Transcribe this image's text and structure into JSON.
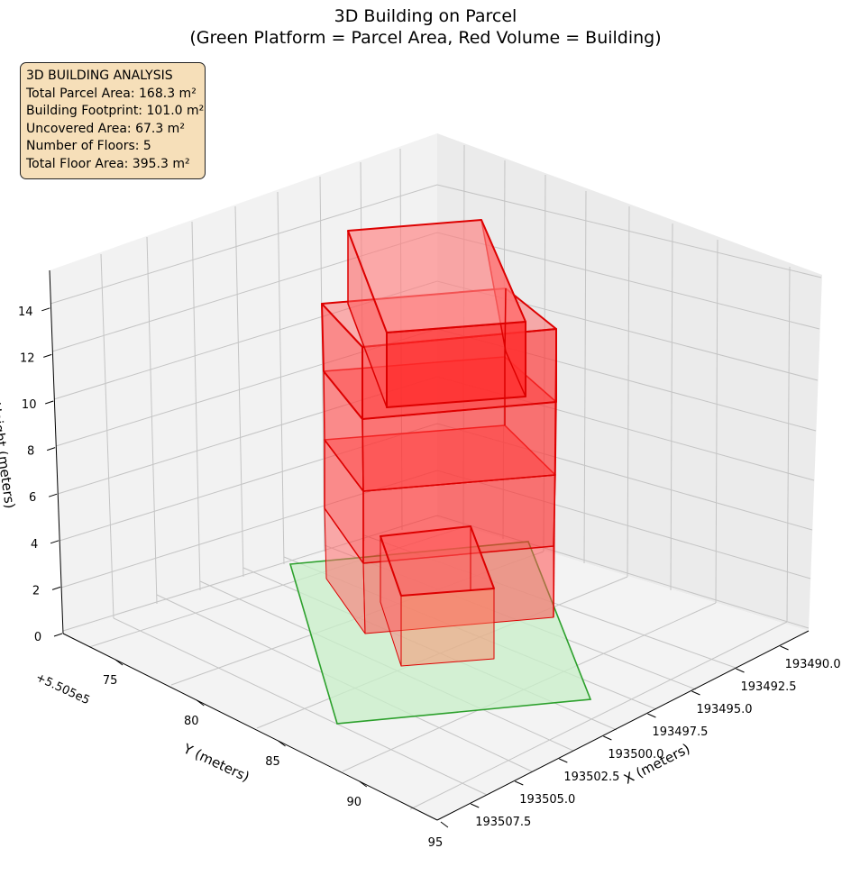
{
  "chart_data": {
    "type": "3d-box",
    "title": "3D Building on Parcel",
    "subtitle": "(Green Platform = Parcel Area, Red Volume = Building)",
    "axes": {
      "x": {
        "label": "X (meters)",
        "ticks": [
          "193490.0",
          "193492.5",
          "193495.0",
          "193497.5",
          "193500.0",
          "193502.5",
          "193505.0",
          "193507.5"
        ]
      },
      "y": {
        "label": "Y (meters)",
        "offset_label": "+5.505e5",
        "ticks": [
          "75",
          "80",
          "85",
          "90",
          "95"
        ]
      },
      "z": {
        "label": "Height (meters)",
        "ticks": [
          "0",
          "2",
          "4",
          "6",
          "8",
          "10",
          "12",
          "14"
        ]
      }
    },
    "parcel": {
      "name": "Parcel Area",
      "color": "#2ca02c",
      "fill": "#c8efc8"
    },
    "building": {
      "name": "Building",
      "color": "#dd0000",
      "fill": "#ff2a2a",
      "floors": 5,
      "floor_height_m": 3
    },
    "info_box": {
      "lines": [
        "3D BUILDING ANALYSIS",
        "Total Parcel Area: 168.3 m²",
        "Building Footprint: 101.0 m²",
        "Uncovered Area: 67.3 m²",
        "Number of Floors: 5",
        "Total Floor Area: 395.3 m²"
      ]
    }
  }
}
